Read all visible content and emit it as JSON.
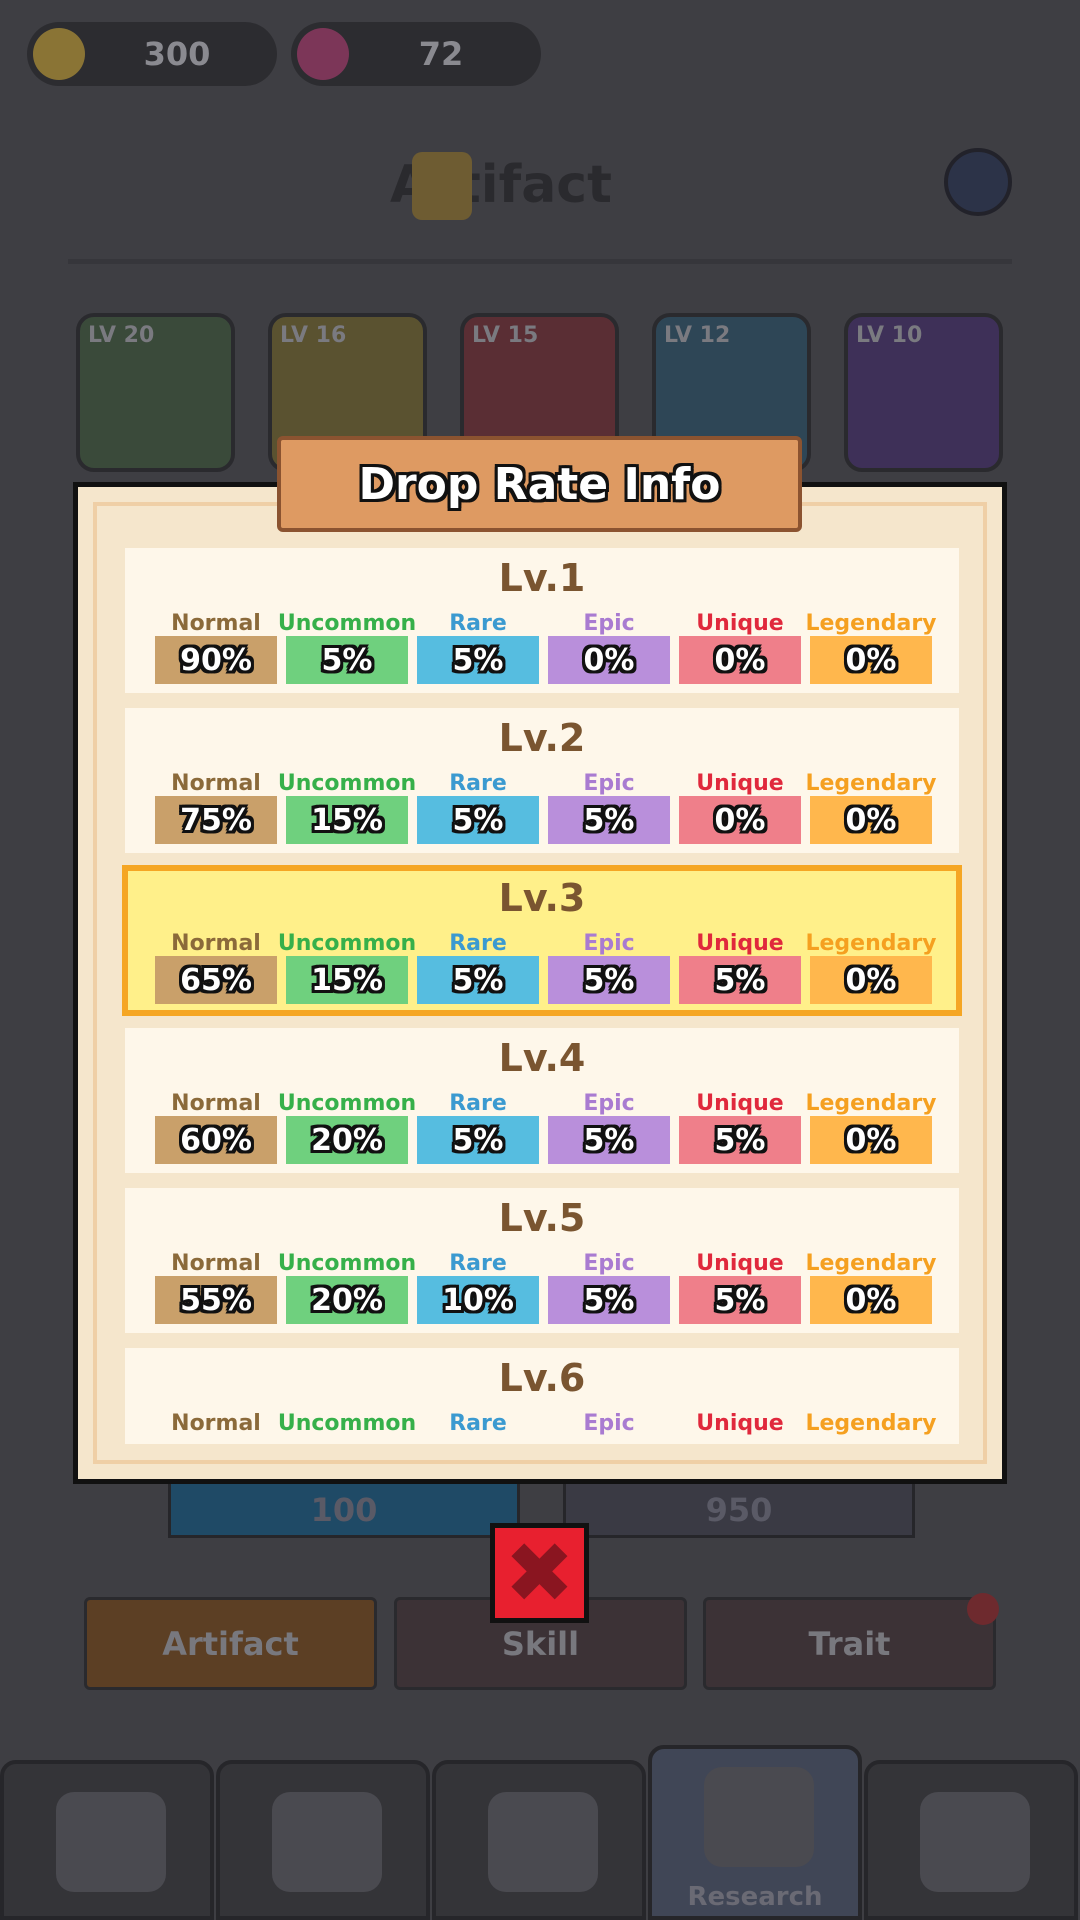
{
  "header": {
    "gold": "300",
    "gems": "72",
    "title": "Artifact"
  },
  "artifacts": [
    {
      "level": "LV 20"
    },
    {
      "level": "LV 16"
    },
    {
      "level": "LV 15"
    },
    {
      "level": "LV 12"
    },
    {
      "level": "LV 10"
    }
  ],
  "dialog": {
    "title": "Drop Rate Info",
    "rarities": [
      "Normal",
      "Uncommon",
      "Rare",
      "Epic",
      "Unique",
      "Legendary"
    ],
    "levels": [
      {
        "label": "Lv.1",
        "rates": [
          "90%",
          "5%",
          "5%",
          "0%",
          "0%",
          "0%"
        ]
      },
      {
        "label": "Lv.2",
        "rates": [
          "75%",
          "15%",
          "5%",
          "5%",
          "0%",
          "0%"
        ]
      },
      {
        "label": "Lv.3",
        "rates": [
          "65%",
          "15%",
          "5%",
          "5%",
          "5%",
          "0%"
        ],
        "highlighted": true
      },
      {
        "label": "Lv.4",
        "rates": [
          "60%",
          "20%",
          "5%",
          "5%",
          "5%",
          "0%"
        ]
      },
      {
        "label": "Lv.5",
        "rates": [
          "55%",
          "20%",
          "10%",
          "5%",
          "5%",
          "0%"
        ]
      },
      {
        "label": "Lv.6"
      }
    ]
  },
  "background_buttons": [
    "100",
    "950"
  ],
  "tabs": [
    "Artifact",
    "Skill",
    "Trait"
  ],
  "nav": {
    "active_label": "Research"
  }
}
